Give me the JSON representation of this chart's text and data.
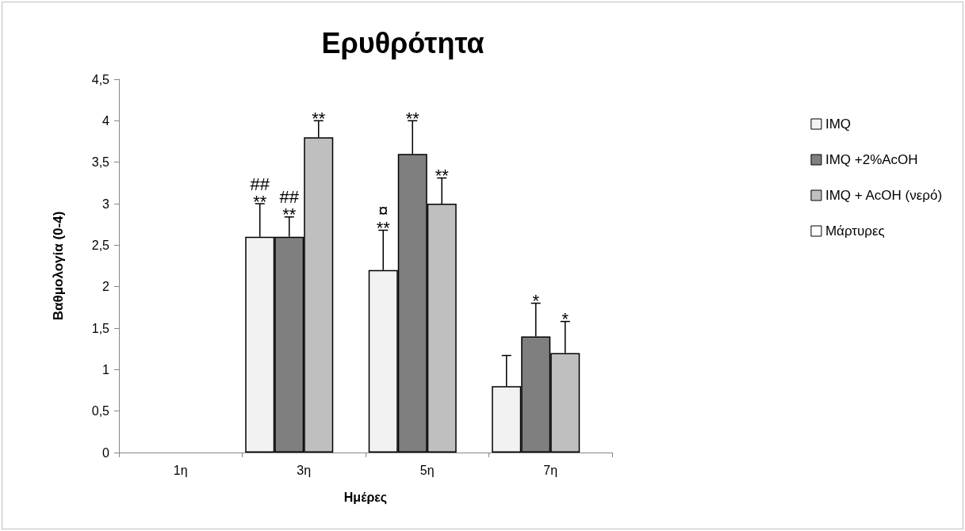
{
  "chart_data": {
    "type": "bar",
    "title": "Ερυθρότητα",
    "xlabel": "Ημέρες",
    "ylabel": "Βαθμολογία (0-4)",
    "categories": [
      "1η",
      "3η",
      "5η",
      "7η"
    ],
    "series": [
      {
        "name": "IMQ",
        "color": "#f2f2f2",
        "values": [
          0,
          2.6,
          2.2,
          0.8
        ],
        "errors": [
          null,
          [
            2.6,
            3.0
          ],
          [
            2.2,
            2.68
          ],
          [
            0.8,
            1.17
          ]
        ]
      },
      {
        "name": "IMQ +2%AcOH",
        "color": "#7f7f7f",
        "values": [
          0,
          2.6,
          3.6,
          1.4
        ],
        "errors": [
          null,
          [
            2.6,
            2.84
          ],
          [
            3.6,
            4.0
          ],
          [
            1.4,
            1.8
          ]
        ]
      },
      {
        "name": "IMQ + AcOH (νερό)",
        "color": "#bfbfbf",
        "values": [
          0,
          3.8,
          3.0,
          1.2
        ],
        "errors": [
          null,
          [
            3.8,
            4.0
          ],
          [
            3.0,
            3.31
          ],
          [
            1.2,
            1.58
          ]
        ]
      },
      {
        "name": "Μάρτυρες",
        "color": "#ffffff",
        "values": [
          0,
          0,
          0,
          0
        ]
      }
    ],
    "ylim": [
      0,
      4.5
    ],
    "yticks": [
      0,
      {
        "value": 0.5,
        "label": "0,5"
      },
      1,
      {
        "value": 1.5,
        "label": "1,5"
      },
      2,
      {
        "value": 2.5,
        "label": "2,5"
      },
      3,
      {
        "value": 3.5,
        "label": "3,5"
      },
      4,
      {
        "value": 4.5,
        "label": "4,5"
      }
    ],
    "annotations": [
      {
        "text": "##\n**",
        "x": "3η",
        "y": 3.0
      },
      {
        "text": "##\n**",
        "x": "3η",
        "y": 2.84
      },
      {
        "text": "**",
        "x": "3η",
        "y": 3.8
      },
      {
        "text": "¤\n**",
        "x": "5η",
        "y": 2.68
      },
      {
        "text": "**",
        "x": "5η",
        "y": 3.6
      },
      {
        "text": "**",
        "x": "5η",
        "y": 3.31
      },
      {
        "text": "*",
        "x": "7η",
        "y": 1.4
      },
      {
        "text": "*",
        "x": "7η",
        "y": 1.2
      }
    ],
    "grid": false,
    "legend": "right"
  }
}
